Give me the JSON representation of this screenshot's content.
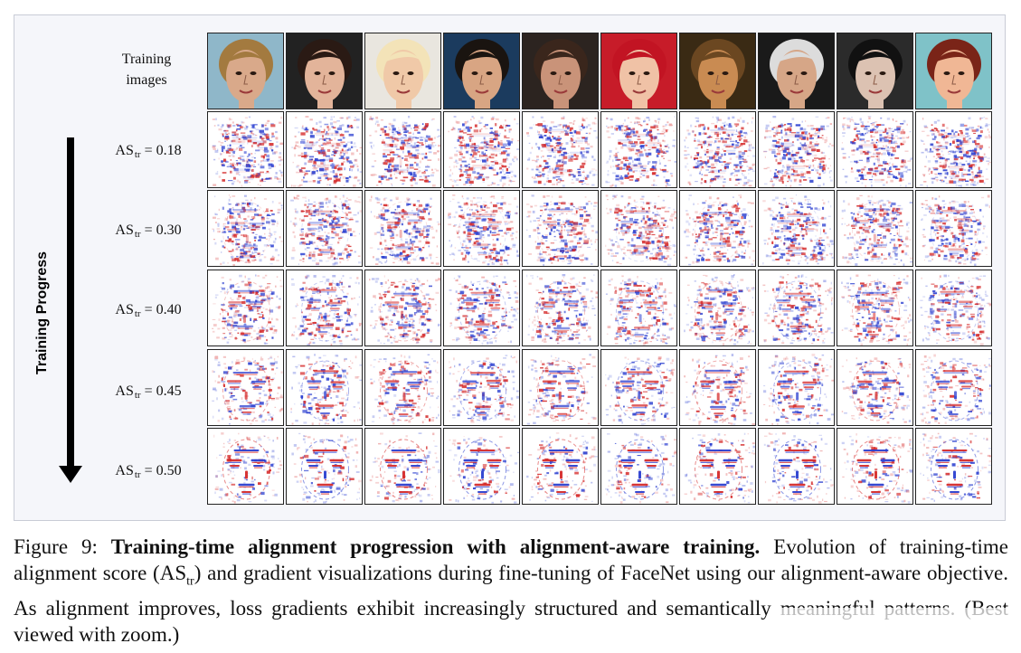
{
  "figure": {
    "training_images_label": "Training images",
    "progress_label": "Training Progress",
    "row_label_prefix": "AS",
    "row_label_subscript": "tr",
    "rows": [
      {
        "score_text": "= 0.18",
        "score": 0.18
      },
      {
        "score_text": "= 0.30",
        "score": 0.3
      },
      {
        "score_text": "= 0.40",
        "score": 0.4
      },
      {
        "score_text": "= 0.45",
        "score": 0.45
      },
      {
        "score_text": "= 0.50",
        "score": 0.5
      }
    ],
    "faces": [
      {
        "bg": "#8fb7c9",
        "skin": "#d9a98a",
        "hair": "#a37a3f"
      },
      {
        "bg": "#222222",
        "skin": "#e3b49a",
        "hair": "#2a1a14"
      },
      {
        "bg": "#e9e6df",
        "skin": "#f0c9a8",
        "hair": "#f3e3b8"
      },
      {
        "bg": "#1b3b5e",
        "skin": "#d8a583",
        "hair": "#1a1410"
      },
      {
        "bg": "#2c2420",
        "skin": "#c99379",
        "hair": "#3a261c"
      },
      {
        "bg": "#c71c29",
        "skin": "#f0c2a6",
        "hair": "#c21423"
      },
      {
        "bg": "#3a2a14",
        "skin": "#c98b52",
        "hair": "#6b4721"
      },
      {
        "bg": "#1a1a1a",
        "skin": "#d6a687",
        "hair": "#dcdcdc"
      },
      {
        "bg": "#2b2b2b",
        "skin": "#dcc2b2",
        "hair": "#111111"
      },
      {
        "bg": "#7fc2c8",
        "skin": "#f0b795",
        "hair": "#7a2418"
      }
    ],
    "colors": {
      "positive": "#d52a2a",
      "negative": "#2b3fd0",
      "heatmap_bg": "#ffffff"
    }
  },
  "caption": {
    "label": "Figure 9:",
    "title": "Training-time alignment progression with alignment-aware training.",
    "text_before": "Evolution of training-time alignment score (AS",
    "text_sub": "tr",
    "text_after": ") and gradient visualizations during fine-tuning of FaceNet using our alignment-aware objective. As alignment improves, loss gradients exhibit increasingly structured and semantically meaningful patterns. (Best viewed with zoom.)"
  }
}
